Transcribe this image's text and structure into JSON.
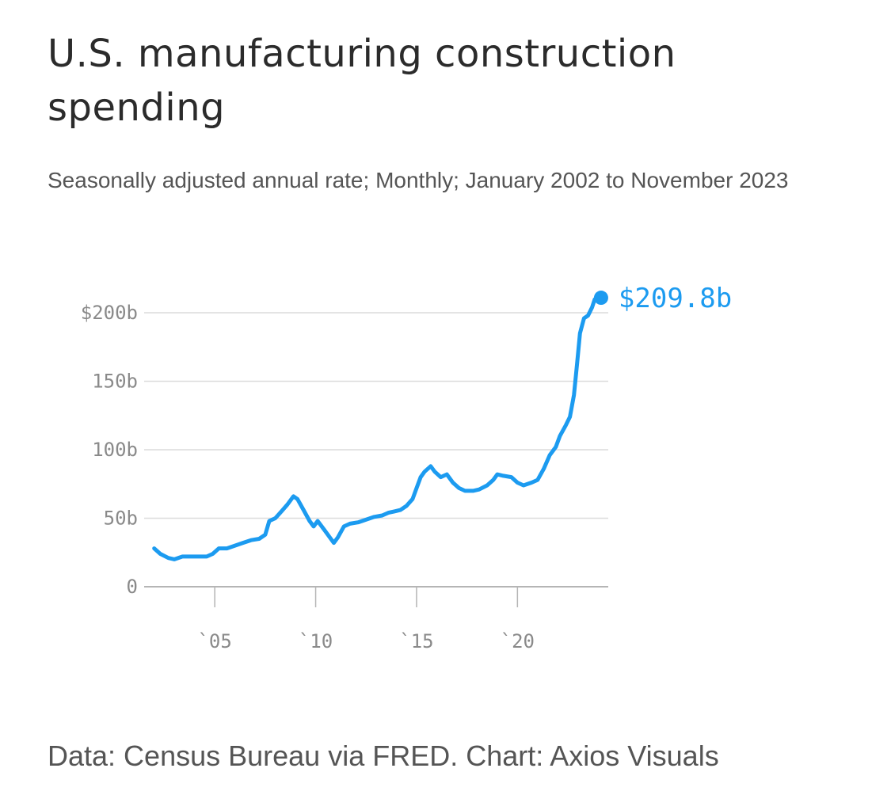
{
  "header": {
    "title": "U.S. manufacturing construction spending",
    "subtitle": "Seasonally adjusted annual rate; Monthly; January 2002 to November 2023"
  },
  "footer": {
    "source": "Data: Census Bureau via FRED. Chart: Axios Visuals"
  },
  "chart_data": {
    "type": "line",
    "title": "U.S. manufacturing construction spending",
    "subtitle": "Seasonally adjusted annual rate; Monthly; January 2002 to November 2023",
    "xlabel": "",
    "ylabel": "",
    "x_unit": "year",
    "xlim": [
      2001.5,
      2024.5
    ],
    "ylim": [
      0,
      210
    ],
    "grid": true,
    "legend": "none",
    "line_color": "#1c9bf0",
    "y_ticks": [
      {
        "value": 0,
        "label": "0"
      },
      {
        "value": 50,
        "label": "50b"
      },
      {
        "value": 100,
        "label": "100b"
      },
      {
        "value": 150,
        "label": "150b"
      },
      {
        "value": 200,
        "label": "$200b"
      }
    ],
    "x_ticks": [
      {
        "value": 2005,
        "label": "`05"
      },
      {
        "value": 2010,
        "label": "`10"
      },
      {
        "value": 2015,
        "label": "`15"
      },
      {
        "value": 2020,
        "label": "`20"
      }
    ],
    "series": [
      {
        "values_unit": "billions of dollars",
        "x": [
          2002.0,
          2002.3,
          2002.7,
          2003.0,
          2003.4,
          2003.8,
          2004.2,
          2004.6,
          2004.9,
          2005.2,
          2005.6,
          2006.0,
          2006.4,
          2006.8,
          2007.2,
          2007.5,
          2007.7,
          2008.0,
          2008.3,
          2008.6,
          2008.9,
          2009.1,
          2009.4,
          2009.7,
          2009.9,
          2010.1,
          2010.4,
          2010.7,
          2010.9,
          2011.1,
          2011.4,
          2011.7,
          2012.1,
          2012.5,
          2012.9,
          2013.3,
          2013.6,
          2013.9,
          2014.2,
          2014.5,
          2014.8,
          2015.0,
          2015.2,
          2015.4,
          2015.7,
          2015.9,
          2016.2,
          2016.5,
          2016.8,
          2017.1,
          2017.4,
          2017.8,
          2018.1,
          2018.5,
          2018.8,
          2019.0,
          2019.3,
          2019.7,
          2020.0,
          2020.3,
          2020.7,
          2021.0,
          2021.3,
          2021.6,
          2021.9,
          2022.1,
          2022.4,
          2022.6,
          2022.8,
          2022.95,
          2023.1,
          2023.3,
          2023.5,
          2023.7,
          2023.83
        ],
        "values": [
          28,
          24,
          21,
          20,
          22,
          22,
          22,
          22,
          24,
          28,
          28,
          30,
          32,
          34,
          35,
          38,
          48,
          50,
          55,
          60,
          66,
          64,
          56,
          48,
          44,
          48,
          42,
          36,
          32,
          36,
          44,
          46,
          47,
          49,
          51,
          52,
          54,
          55,
          56,
          59,
          64,
          72,
          80,
          84,
          88,
          84,
          80,
          82,
          76,
          72,
          70,
          70,
          71,
          74,
          78,
          82,
          81,
          80,
          76,
          74,
          76,
          78,
          86,
          96,
          102,
          110,
          118,
          124,
          140,
          162,
          185,
          196,
          198,
          204,
          209.8
        ]
      }
    ],
    "end_label": "$209.8b"
  }
}
